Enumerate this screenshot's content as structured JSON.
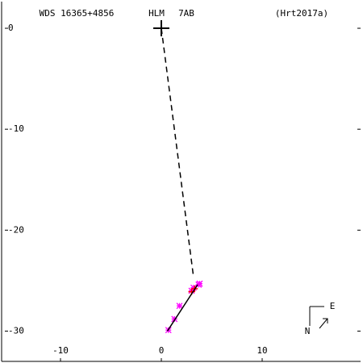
{
  "chart_data": {
    "type": "scatter",
    "title": "WDS 16365+4856",
    "discoverer": "HLM",
    "component": "7AB",
    "reference": "(Hrt2017a)",
    "xlim": [
      -15.84,
      19.76
    ],
    "ylim": [
      -33,
      2.64
    ],
    "xticks": [
      -10,
      0,
      10
    ],
    "yticks": [
      0,
      -10,
      -20,
      -30
    ],
    "series": [
      {
        "color": "#ff00ff",
        "marker": "asterisk",
        "x": [
          0.7,
          1.3,
          1.8,
          3.0,
          3.2,
          3.7,
          3.8
        ],
        "y": [
          -29.9,
          -28.8,
          -27.5,
          -26.0,
          -25.7,
          -25.4,
          -25.3
        ]
      },
      {
        "color": "#ff0000",
        "marker": "plus",
        "x": [
          3.0,
          3.3
        ],
        "y": [
          -26.1,
          -25.8
        ]
      },
      {
        "color": "#000000",
        "line": "dashed",
        "x": [
          0,
          3.2
        ],
        "y": [
          0,
          -24.7
        ]
      },
      {
        "color": "#000000",
        "line": "solid",
        "x": [
          0.6,
          3.6
        ],
        "y": [
          -30,
          -25.4
        ]
      },
      {
        "color": "#000000",
        "marker": "big-plus",
        "x": [
          0
        ],
        "y": [
          0
        ]
      }
    ],
    "compass": {
      "north": "N",
      "east": "E"
    }
  }
}
